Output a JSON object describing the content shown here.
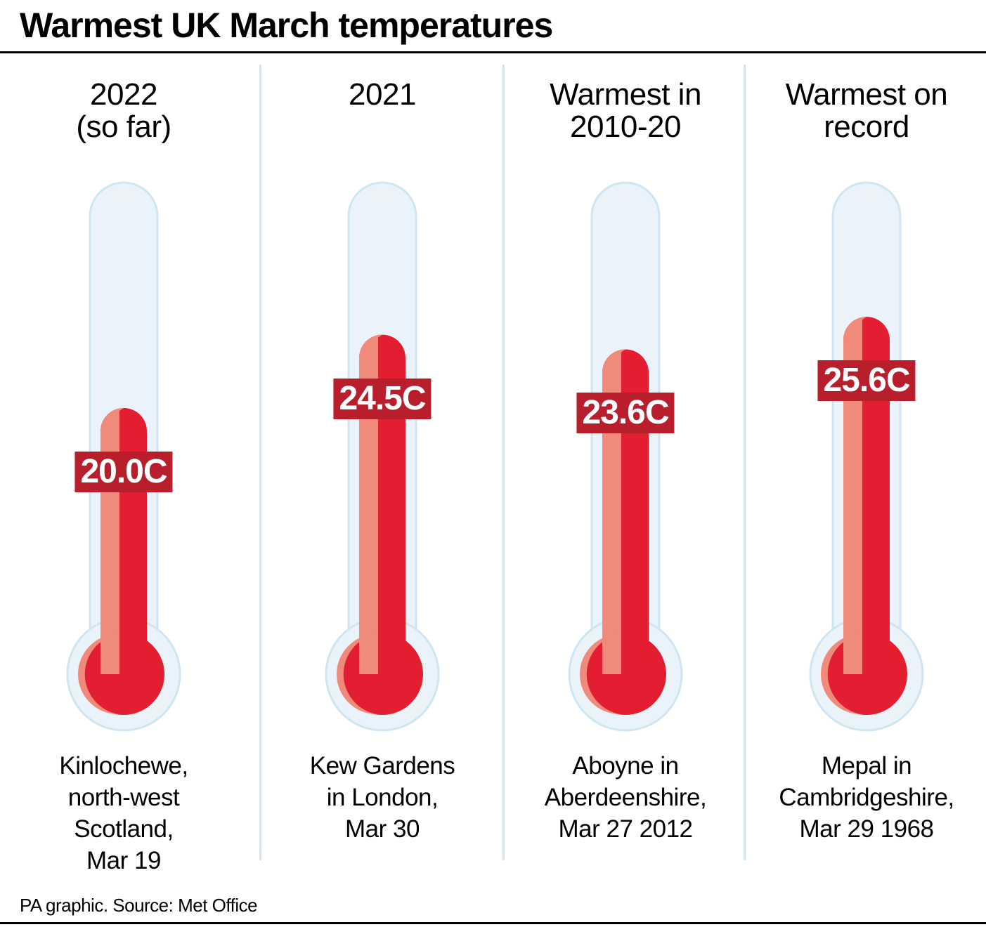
{
  "title": "Warmest UK March temperatures",
  "chart_data": {
    "type": "bar",
    "title": "Warmest UK March temperatures",
    "categories": [
      "2022\n(so far)",
      "2021",
      "Warmest in\n2010-20",
      "Warmest on\nrecord"
    ],
    "values": [
      20.0,
      24.5,
      23.6,
      25.6
    ],
    "value_labels": [
      "20.0C",
      "24.5C",
      "23.6C",
      "25.6C"
    ],
    "captions": [
      "Kinlochewe,\nnorth-west\nScotland,\nMar 19",
      "Kew Gardens\nin London,\nMar 30",
      "Aboyne in\nAberdeenshire,\nMar 27 2012",
      "Mepal in\nCambridgeshire,\nMar 29 1968"
    ],
    "unit": "C",
    "colors": {
      "mercury": "#e31e30",
      "mercury_shade": "#f08a7a",
      "label_bg": "#b81e2c",
      "tube_fill": "#eaf3fa",
      "tube_outline": "#cfe5f1"
    }
  },
  "source": "PA graphic. Source: Met Office"
}
